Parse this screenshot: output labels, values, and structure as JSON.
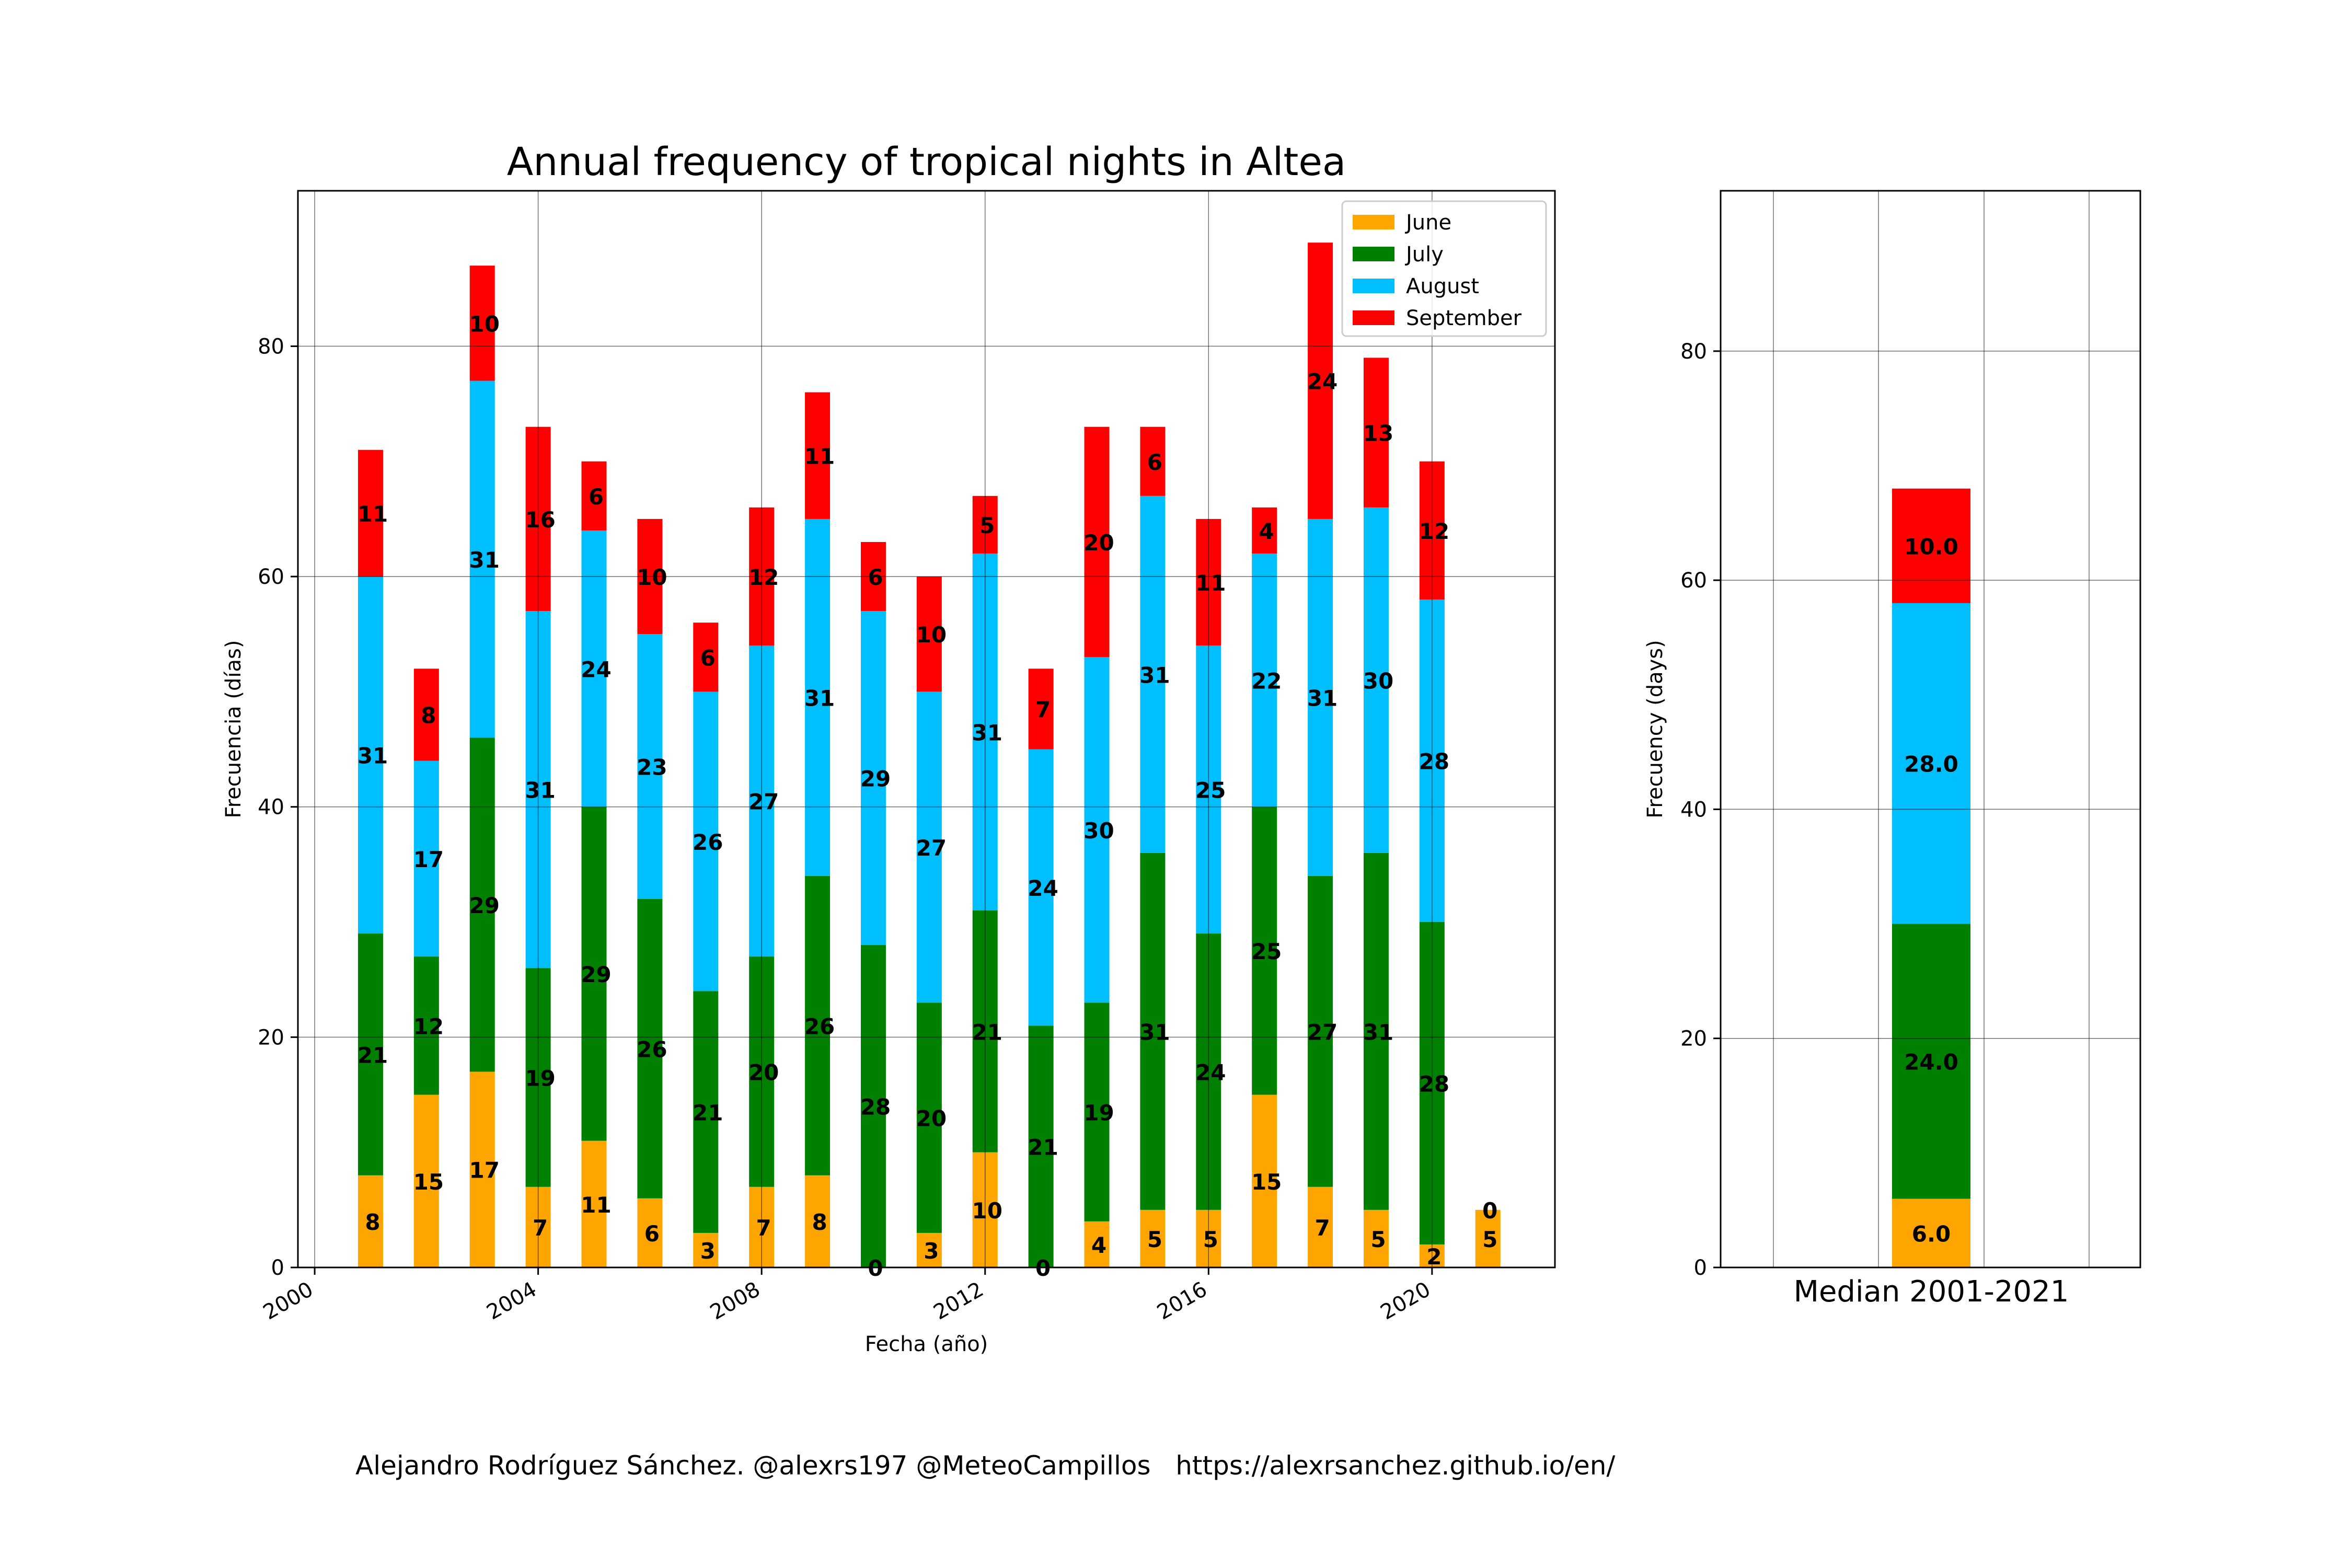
{
  "chart_data": [
    {
      "type": "bar",
      "stacked": true,
      "title": "Annual frequency of tropical nights in Altea",
      "xlabel": "Fecha (año)",
      "ylabel": "Frecuencia (días)",
      "x": [
        2001,
        2002,
        2003,
        2004,
        2005,
        2006,
        2007,
        2008,
        2009,
        2010,
        2011,
        2012,
        2013,
        2014,
        2015,
        2016,
        2017,
        2018,
        2019,
        2020,
        2021
      ],
      "xticks": [
        "2000",
        "2004",
        "2008",
        "2012",
        "2016",
        "2020"
      ],
      "xlim": [
        1999.7,
        2022.2
      ],
      "yticks": [
        "0",
        "20",
        "40",
        "60",
        "80"
      ],
      "ylim": [
        0,
        93.5
      ],
      "grid": true,
      "legend_position": "top-right",
      "series": [
        {
          "name": "June",
          "color": "#FFA500",
          "values": [
            8,
            15,
            17,
            7,
            11,
            6,
            3,
            7,
            8,
            0,
            3,
            10,
            0,
            4,
            5,
            5,
            15,
            7,
            5,
            2,
            5
          ]
        },
        {
          "name": "July",
          "color": "#008000",
          "values": [
            21,
            12,
            29,
            19,
            29,
            26,
            21,
            20,
            26,
            28,
            20,
            21,
            21,
            19,
            31,
            24,
            25,
            27,
            31,
            28,
            null
          ]
        },
        {
          "name": "August",
          "color": "#00BFFF",
          "values": [
            31,
            17,
            31,
            31,
            24,
            23,
            26,
            27,
            31,
            29,
            27,
            31,
            24,
            30,
            31,
            25,
            22,
            31,
            30,
            28,
            null
          ]
        },
        {
          "name": "September",
          "color": "#FF0000",
          "values": [
            11,
            8,
            10,
            16,
            6,
            10,
            6,
            12,
            11,
            6,
            10,
            5,
            7,
            20,
            6,
            11,
            4,
            24,
            13,
            12,
            null
          ]
        }
      ],
      "labels": [
        [
          "8",
          "15",
          "17",
          "7",
          "11",
          "6",
          "3",
          "7",
          "8",
          "0",
          "3",
          "10",
          "0",
          "4",
          "5",
          "5",
          "15",
          "7",
          "5",
          "2",
          "5"
        ],
        [
          "21",
          "12",
          "29",
          "19",
          "29",
          "26",
          "21",
          "20",
          "26",
          "28",
          "20",
          "21",
          "21",
          "19",
          "31",
          "24",
          "25",
          "27",
          "31",
          "28",
          "0"
        ],
        [
          "31",
          "17",
          "31",
          "31",
          "24",
          "23",
          "26",
          "27",
          "31",
          "29",
          "27",
          "31",
          "24",
          "30",
          "31",
          "25",
          "22",
          "31",
          "30",
          "28",
          ""
        ],
        [
          "11",
          "8",
          "10",
          "16",
          "6",
          "10",
          "6",
          "12",
          "11",
          "6",
          "10",
          "5",
          "7",
          "20",
          "6",
          "11",
          "4",
          "24",
          "13",
          "12",
          ""
        ]
      ]
    },
    {
      "type": "bar",
      "stacked": true,
      "title": "",
      "xlabel": "Median 2001-2021",
      "ylabel": "Frecuency (days)",
      "categories": [
        "Median 2001-2021"
      ],
      "yticks": [
        "0",
        "20",
        "40",
        "60",
        "80"
      ],
      "ylim": [
        0,
        94
      ],
      "grid": true,
      "series": [
        {
          "color": "#FFA500",
          "values": [
            6.0
          ]
        },
        {
          "color": "#008000",
          "values": [
            24.0
          ]
        },
        {
          "color": "#00BFFF",
          "values": [
            28.0
          ]
        },
        {
          "color": "#FF0000",
          "values": [
            10.0
          ]
        }
      ],
      "labels": [
        "6.0",
        "24.0",
        "28.0",
        "10.0"
      ]
    }
  ],
  "footer": {
    "credit": "Alejandro Rodríguez Sánchez. @alexrs197 @MeteoCampillos   https://alexrsanchez.github.io/en/"
  }
}
